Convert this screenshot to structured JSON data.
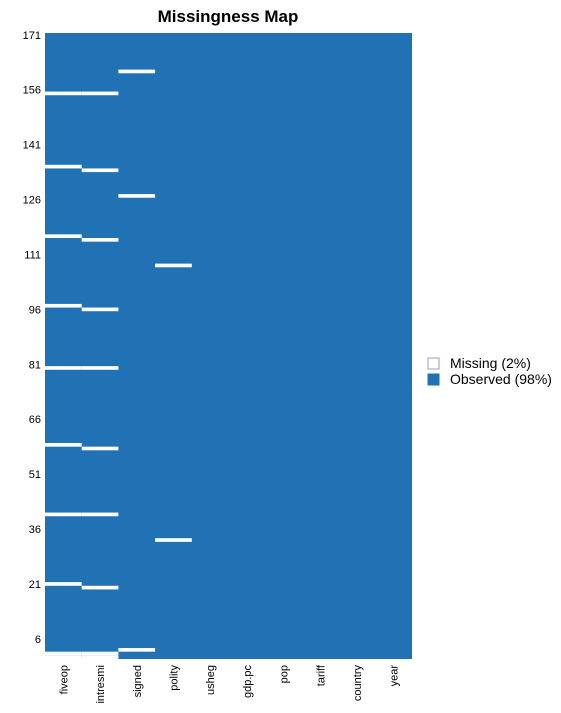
{
  "chart_data": {
    "type": "heatmap",
    "title": "Missingness Map",
    "variables": [
      "fiveop",
      "intresmi",
      "signed",
      "polity",
      "usheg",
      "gdp.pc",
      "pop",
      "tariff",
      "country",
      "year"
    ],
    "row_count": 171,
    "y_ticks": [
      6,
      21,
      36,
      51,
      66,
      81,
      96,
      111,
      126,
      141,
      156,
      171
    ],
    "missing_rows": {
      "fiveop": [
        1,
        2,
        21,
        40,
        59,
        80,
        97,
        116,
        135,
        155
      ],
      "intresmi": [
        1,
        2,
        20,
        40,
        58,
        80,
        96,
        115,
        134,
        155
      ],
      "signed": [
        3,
        127,
        161
      ],
      "polity": [
        33,
        108
      ]
    },
    "legend": [
      {
        "label": "Missing (2%)",
        "color": "#ffffff"
      },
      {
        "label": "Observed (98%)",
        "color": "#2171b5"
      }
    ],
    "colors": {
      "observed": "#2171b5",
      "missing": "#ffffff"
    },
    "xlabel": "",
    "ylabel": ""
  }
}
